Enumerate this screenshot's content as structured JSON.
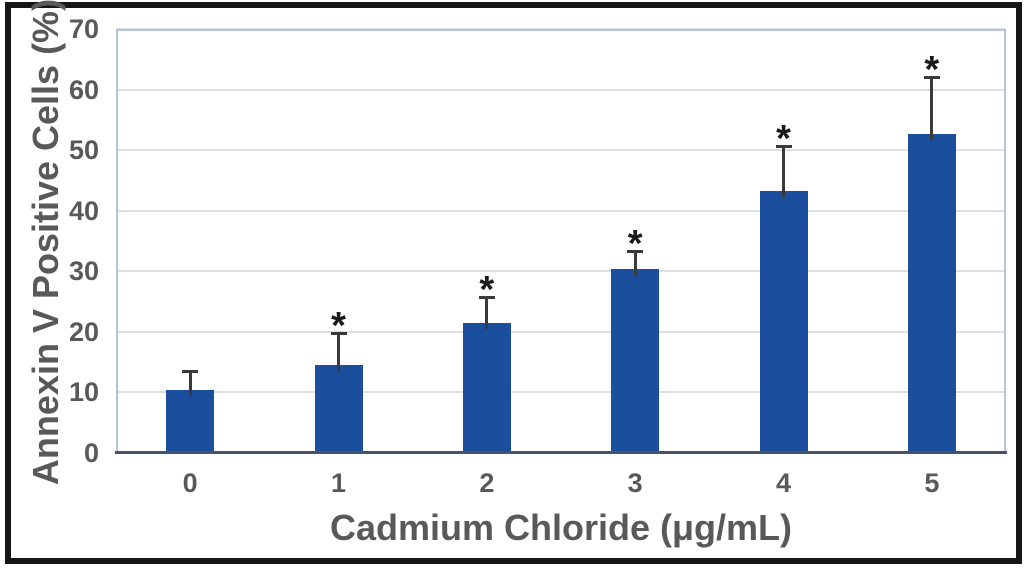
{
  "figure": {
    "background_color": "#ffffff",
    "frame_color": "#161616"
  },
  "chart_data": {
    "type": "bar",
    "title": "",
    "xlabel": "Cadmium Chloride (μg/mL)",
    "ylabel": "Annexin V Positive Cells (%)",
    "categories": [
      "0",
      "1",
      "2",
      "3",
      "4",
      "5"
    ],
    "values": [
      10.4,
      14.5,
      21.4,
      30.4,
      43.2,
      52.6
    ],
    "error_bars_plus": [
      3.1,
      5.3,
      4.4,
      2.9,
      7.5,
      9.5
    ],
    "significance": [
      false,
      true,
      true,
      true,
      true,
      true
    ],
    "significance_marker": "*",
    "ylim": [
      0,
      70
    ],
    "yticks": [
      0,
      10,
      20,
      30,
      40,
      50,
      60,
      70
    ],
    "grid": true,
    "legend_position": "none",
    "bar_color": "#1b4f9e",
    "gridline_color": "#dcdfe3",
    "plot_border_color": "#b7c3d6",
    "axis_line_color": "#44546a",
    "error_bar_color": "#3a3a3a",
    "marker_color": "#1a1a1a",
    "text_color": "#595959"
  }
}
